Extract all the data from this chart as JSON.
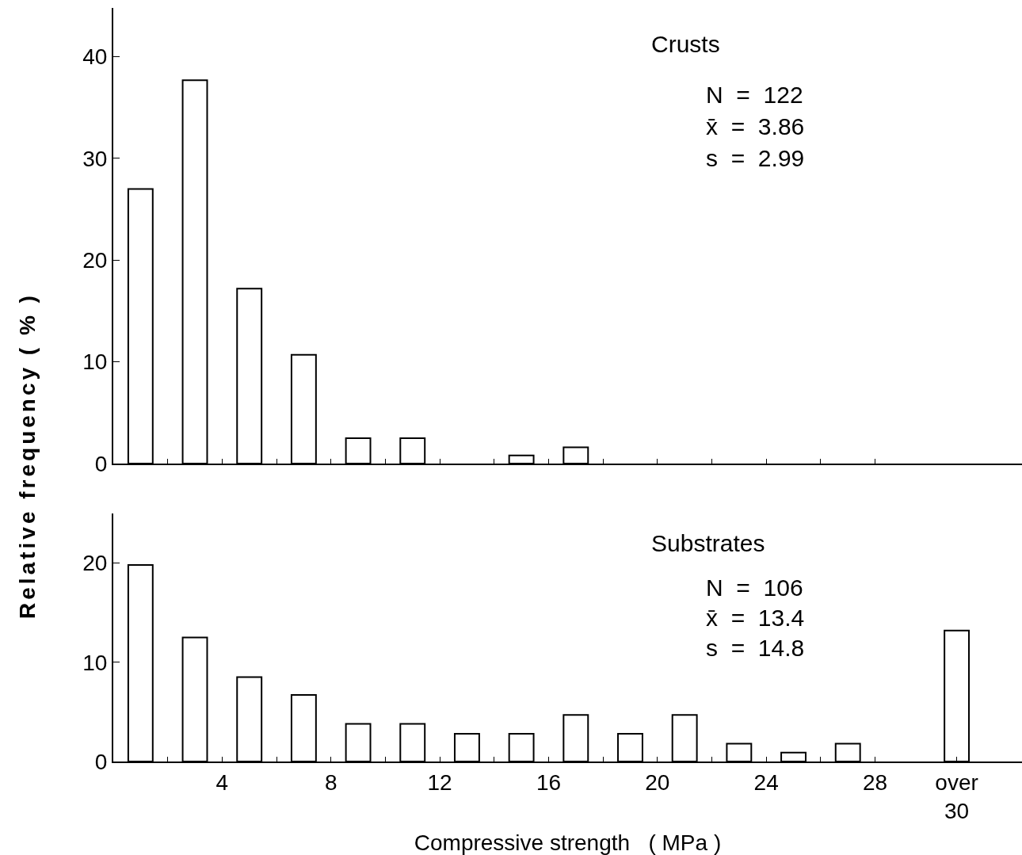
{
  "chart_data": [
    {
      "type": "bar",
      "ylabel": "Relative frequency ( % )",
      "x": [
        1,
        3,
        5,
        7,
        9,
        11,
        13,
        15,
        17
      ],
      "values": [
        27.0,
        37.7,
        17.2,
        10.7,
        2.5,
        2.5,
        null,
        0.8,
        1.6
      ],
      "color": "#ffffff",
      "xlim": [
        0,
        33.4
      ],
      "ylim": [
        0,
        44.8
      ],
      "yticks": [
        0,
        10,
        20,
        30,
        40
      ],
      "xticks": [
        {
          "value": 2,
          "label": null
        },
        {
          "value": 4,
          "label": null
        },
        {
          "value": 6,
          "label": null
        },
        {
          "value": 8,
          "label": null
        },
        {
          "value": 10,
          "label": null
        },
        {
          "value": 12,
          "label": null
        },
        {
          "value": 14,
          "label": null
        },
        {
          "value": 16,
          "label": null
        },
        {
          "value": 18,
          "label": null
        },
        {
          "value": 20,
          "label": null
        },
        {
          "value": 22,
          "label": null
        },
        {
          "value": 24,
          "label": null
        },
        {
          "value": 26,
          "label": null
        },
        {
          "value": 28,
          "label": null
        }
      ],
      "tick_labels": "y",
      "annotations": [
        "Crusts",
        "N  =  122",
        "x̄  =  3.86",
        "s  =  2.99"
      ]
    },
    {
      "type": "bar",
      "xlabel": "Compressive strength   ( MPa )",
      "x": [
        1,
        3,
        5,
        7,
        9,
        11,
        13,
        15,
        17,
        19,
        21,
        23,
        25,
        27,
        29,
        31
      ],
      "values": [
        19.8,
        12.5,
        8.5,
        6.7,
        3.8,
        3.8,
        2.8,
        2.8,
        4.7,
        2.8,
        4.7,
        1.8,
        0.9,
        1.8,
        null,
        13.2
      ],
      "color": "#ffffff",
      "xlim": [
        0,
        33.4
      ],
      "ylim": [
        0,
        25
      ],
      "yticks": [
        0,
        10,
        20
      ],
      "xticks": [
        {
          "value": 2,
          "label": null
        },
        4,
        {
          "value": 6,
          "label": null
        },
        8,
        {
          "value": 10,
          "label": null
        },
        12,
        {
          "value": 14,
          "label": null
        },
        16,
        {
          "value": 18,
          "label": null
        },
        20,
        {
          "value": 22,
          "label": null
        },
        24,
        {
          "value": 26,
          "label": null
        },
        28,
        {
          "value": 31,
          "label": "over 30"
        }
      ],
      "annotations": [
        "Substrates",
        "N  =  106",
        "x̄  =  13.4",
        "s  =  14.8"
      ]
    }
  ]
}
